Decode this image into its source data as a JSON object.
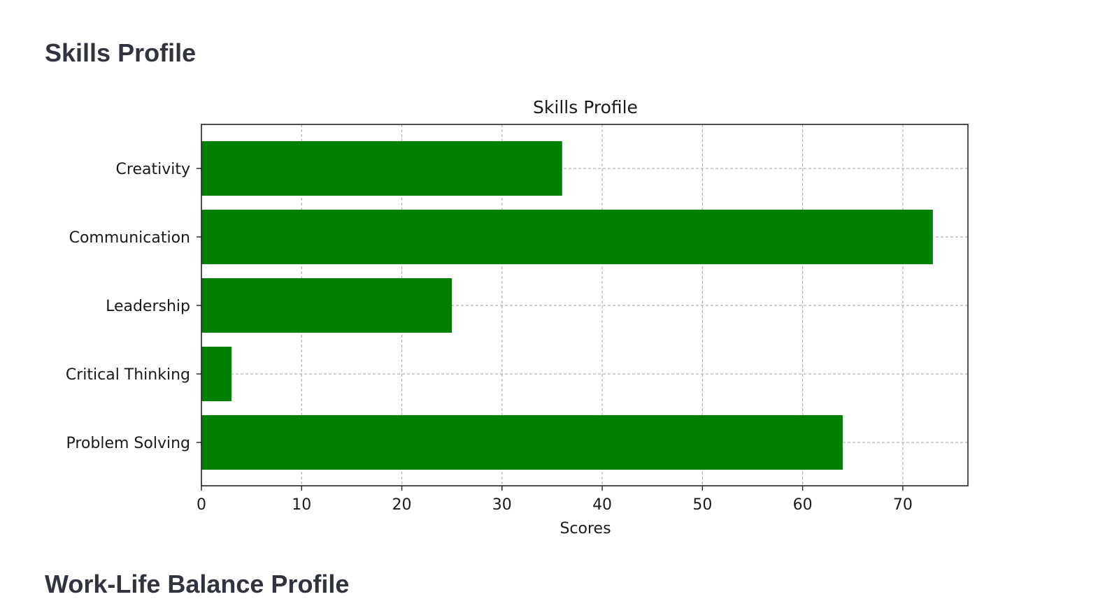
{
  "page": {
    "heading": "Skills Profile",
    "next_heading": "Work-Life Balance Profile"
  },
  "colors": {
    "bar": "#008000",
    "grid": "#b0b0b0",
    "axis": "#222222"
  },
  "chart_data": {
    "type": "bar",
    "orientation": "horizontal",
    "title": "Skills Profile",
    "xlabel": "Scores",
    "ylabel": "",
    "categories": [
      "Creativity",
      "Communication",
      "Leadership",
      "Critical Thinking",
      "Problem Solving"
    ],
    "values": [
      36,
      73,
      25,
      3,
      64
    ],
    "xlim": [
      0,
      76.5
    ],
    "xticks": [
      0,
      10,
      20,
      30,
      40,
      50,
      60,
      70
    ],
    "grid": true,
    "grid_style": "dashed",
    "legend": "none"
  }
}
